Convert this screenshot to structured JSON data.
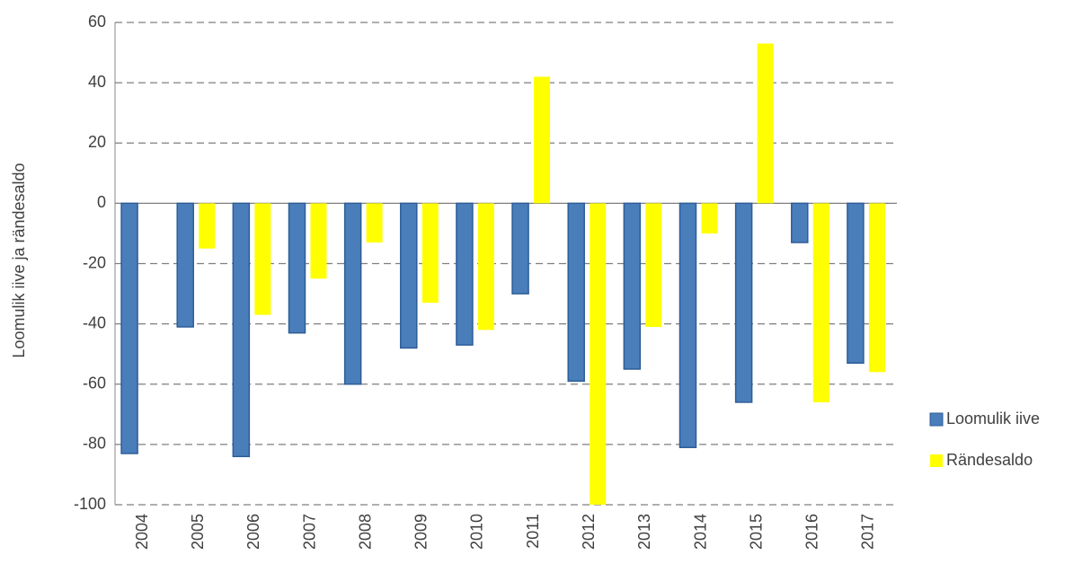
{
  "chart_data": {
    "type": "bar",
    "ylabel": "Loomulik iive ja rändesaldo",
    "categories": [
      "2004",
      "2005",
      "2006",
      "2007",
      "2008",
      "2009",
      "2010",
      "2011",
      "2012",
      "2013",
      "2014",
      "2015",
      "2016",
      "2017"
    ],
    "series": [
      {
        "name": "Loomulik iive",
        "color": "#4a7ebb",
        "values": [
          -83,
          -41,
          -84,
          -43,
          -60,
          -48,
          -47,
          -30,
          -59,
          -55,
          -81,
          -66,
          -13,
          -53
        ]
      },
      {
        "name": "Rändesaldo",
        "color": "#ffff00",
        "values": [
          0,
          -15,
          -37,
          -25,
          -13,
          -33,
          -42,
          42,
          -100,
          -41,
          -10,
          53,
          -66,
          -56
        ]
      }
    ],
    "ylim": [
      -100,
      60
    ],
    "yticks": [
      -100,
      -80,
      -60,
      -40,
      -20,
      0,
      20,
      40,
      60
    ],
    "grid": true,
    "legend": "right"
  }
}
